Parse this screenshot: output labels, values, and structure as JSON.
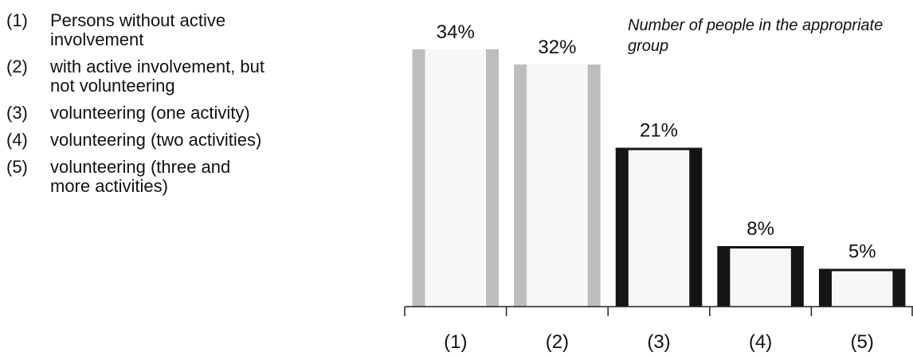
{
  "legend": {
    "items": [
      {
        "code": "(1)",
        "label": "Persons without active involvement"
      },
      {
        "code": "(2)",
        "label": "with active involvement, but not volunteering"
      },
      {
        "code": "(3)",
        "label": "volunteering (one activity)"
      },
      {
        "code": "(4)",
        "label": "volunteering (two activities)"
      },
      {
        "code": "(5)",
        "label": "volunteering (three and more activities)"
      }
    ]
  },
  "chart_data": {
    "type": "bar",
    "title": "",
    "annotation": "Number of people in the appropriate group",
    "categories": [
      "(1)",
      "(2)",
      "(3)",
      "(4)",
      "(5)"
    ],
    "values": [
      34,
      32,
      21,
      8,
      5
    ],
    "value_labels": [
      "34%",
      "32%",
      "21%",
      "8%",
      "5%"
    ],
    "unit": "%",
    "xlabel": "",
    "ylabel": "",
    "ylim": [
      0,
      34
    ],
    "grid": false,
    "legend_position": "left",
    "colors": {
      "light": "#bdbdbd",
      "dark": "#151515",
      "axis": "#222222",
      "text": "#111111"
    },
    "bar_styles": [
      "light",
      "light",
      "dark",
      "dark",
      "dark"
    ]
  }
}
